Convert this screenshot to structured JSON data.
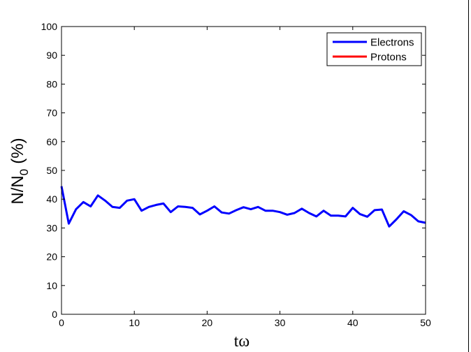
{
  "chart_data": {
    "type": "line",
    "title": "",
    "xlabel": "tω",
    "ylabel": "N/N",
    "ylabel_subscript": "0",
    "ylabel_suffix": "(%)",
    "xlim": [
      0,
      50
    ],
    "ylim": [
      0,
      100
    ],
    "xticks": [
      0,
      10,
      20,
      30,
      40,
      50
    ],
    "yticks": [
      0,
      10,
      20,
      30,
      40,
      50,
      60,
      70,
      80,
      90,
      100
    ],
    "grid": false,
    "legend_position": "top-right",
    "series": [
      {
        "name": "Electrons",
        "color": "#0000ff",
        "x": [
          0,
          1,
          2,
          3,
          4,
          5,
          6,
          7,
          8,
          9,
          10,
          11,
          12,
          13,
          14,
          15,
          16,
          17,
          18,
          19,
          20,
          21,
          22,
          23,
          24,
          25,
          26,
          27,
          28,
          29,
          30,
          31,
          32,
          33,
          34,
          35,
          36,
          37,
          38,
          39,
          40,
          41,
          42,
          43,
          44,
          45,
          46,
          47,
          48,
          49,
          50
        ],
        "y": [
          44.5,
          31.5,
          36.5,
          39,
          37.5,
          41.3,
          39.5,
          37.3,
          37,
          39.5,
          40,
          36,
          37.3,
          38,
          38.5,
          35.5,
          37.5,
          37.3,
          37,
          34.7,
          36,
          37.5,
          35.4,
          35,
          36.2,
          37.2,
          36.5,
          37.3,
          36,
          36,
          35.5,
          34.6,
          35.2,
          36.7,
          35.2,
          34,
          36,
          34.3,
          34.3,
          34,
          37,
          34.8,
          33.9,
          36.2,
          36.4,
          30.5,
          33,
          35.8,
          34.5,
          32.3,
          31.8
        ]
      },
      {
        "name": "Protons",
        "color": "#ff0000",
        "x": [],
        "y": []
      }
    ]
  }
}
